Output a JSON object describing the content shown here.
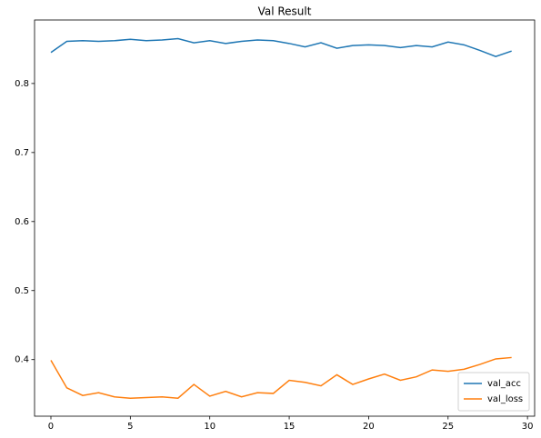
{
  "chart_data": {
    "type": "line",
    "title": "Val Result",
    "x": [
      0,
      1,
      2,
      3,
      4,
      5,
      6,
      7,
      8,
      9,
      10,
      11,
      12,
      13,
      14,
      15,
      16,
      17,
      18,
      19,
      20,
      21,
      22,
      23,
      24,
      25,
      26,
      27,
      28,
      29
    ],
    "series": [
      {
        "name": "val_acc",
        "color": "#1f77b4",
        "values": [
          0.845,
          0.861,
          0.862,
          0.861,
          0.862,
          0.864,
          0.862,
          0.863,
          0.865,
          0.859,
          0.862,
          0.858,
          0.861,
          0.863,
          0.862,
          0.858,
          0.853,
          0.859,
          0.851,
          0.855,
          0.856,
          0.855,
          0.852,
          0.855,
          0.853,
          0.86,
          0.856,
          0.848,
          0.839,
          0.847
        ]
      },
      {
        "name": "val_loss",
        "color": "#ff7f0e",
        "values": [
          0.399,
          0.359,
          0.348,
          0.352,
          0.346,
          0.344,
          0.345,
          0.346,
          0.344,
          0.364,
          0.347,
          0.354,
          0.346,
          0.352,
          0.351,
          0.37,
          0.367,
          0.362,
          0.378,
          0.364,
          0.372,
          0.379,
          0.37,
          0.375,
          0.385,
          0.383,
          0.386,
          0.393,
          0.401,
          0.403
        ]
      }
    ],
    "xlim": [
      -1.03,
      30.45
    ],
    "xticks": [
      0,
      5,
      10,
      15,
      20,
      25,
      30
    ],
    "ylim": [
      0.318,
      0.892
    ],
    "yticks": [
      0.4,
      0.5,
      0.6,
      0.7,
      0.8
    ],
    "grid": false,
    "legend": "lower right"
  }
}
